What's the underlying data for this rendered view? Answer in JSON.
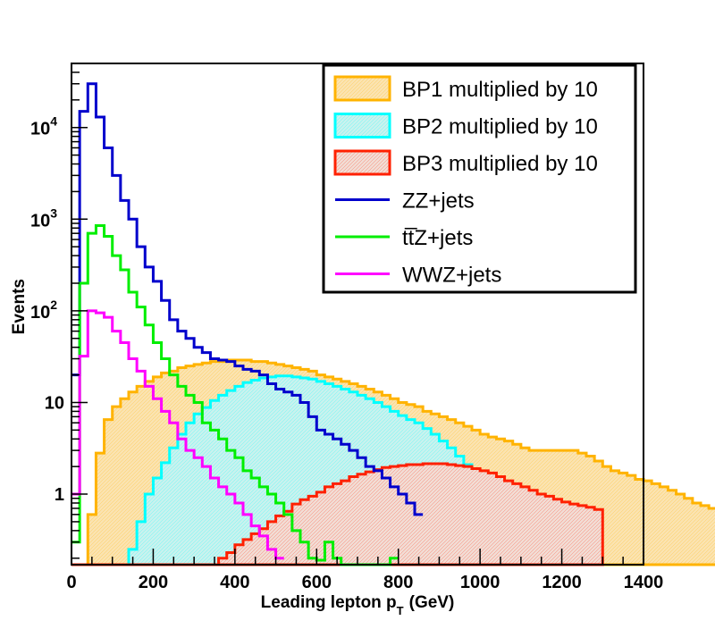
{
  "chart_data": {
    "type": "histogram",
    "title": "",
    "xlabel": "Leading lepton p",
    "xlabel_sub": "T",
    "xlabel_unit": "(GeV)",
    "ylabel": "Events",
    "xlim": [
      0,
      1400
    ],
    "ylim": [
      0.17,
      50000
    ],
    "yscale": "log",
    "bin_width": 20,
    "x_ticks": [
      "0",
      "200",
      "400",
      "600",
      "800",
      "1000",
      "1200",
      "1400"
    ],
    "y_ticks": [
      {
        "value": 1,
        "label": "1"
      },
      {
        "value": 10,
        "label": "10"
      },
      {
        "value": 100,
        "label": "10",
        "exp": "2"
      },
      {
        "value": 1000,
        "label": "10",
        "exp": "3"
      },
      {
        "value": 10000,
        "label": "10",
        "exp": "4"
      }
    ],
    "legend_position": "top-right",
    "series": [
      {
        "name": "BP1 multiplied by 10",
        "color": "#ffb300",
        "fill": "#fbe3b0",
        "style": "filled",
        "values": [
          0.17,
          0.17,
          0.6,
          2.8,
          6.5,
          9,
          11,
          13,
          15,
          17,
          19,
          21,
          22,
          24,
          25,
          26,
          27,
          28,
          28,
          29,
          29,
          29,
          28,
          28,
          27,
          26,
          25,
          24,
          23,
          22,
          20,
          19,
          18,
          17,
          16,
          15,
          14,
          13,
          12,
          11,
          10,
          9.5,
          9,
          8,
          7.5,
          7,
          6.5,
          6,
          5.5,
          5,
          4.5,
          4.2,
          4,
          3.8,
          3.5,
          3.2,
          3.0,
          3.0,
          3.0,
          3.0,
          3.0,
          3.0,
          2.8,
          2.6,
          2.3,
          2.0,
          1.8,
          1.7,
          1.6,
          1.45,
          1.4,
          1.3,
          1.2,
          1.1,
          1.0,
          0.9,
          0.8,
          0.75,
          0.7,
          0.6
        ]
      },
      {
        "name": "BP2 multiplied by 10",
        "color": "#00ffff",
        "fill": "#c8f2ee",
        "style": "filled",
        "values": [
          0.17,
          0.17,
          0.17,
          0.17,
          0.17,
          0.17,
          0.17,
          0.25,
          0.5,
          1.0,
          1.5,
          2.2,
          3.2,
          4.5,
          6.0,
          7.5,
          8.8,
          10.5,
          12,
          13.5,
          15,
          16.5,
          17.5,
          18.5,
          19,
          19.5,
          19.5,
          19,
          18.5,
          18,
          17,
          16,
          15,
          14,
          13,
          12,
          11,
          10,
          9,
          8,
          7.2,
          6.5,
          6,
          5.2,
          4.5,
          3.8,
          3.2,
          2.6,
          2.1,
          1.7,
          1.4,
          1.15
        ]
      },
      {
        "name": "BP3 multiplied by 10",
        "color": "#ff2000",
        "fill": "#f2dcd4",
        "style": "filled",
        "values": [
          0.17,
          0.17,
          0.17,
          0.17,
          0.17,
          0.17,
          0.17,
          0.17,
          0.17,
          0.17,
          0.17,
          0.17,
          0.17,
          0.17,
          0.17,
          0.17,
          0.17,
          0.17,
          0.2,
          0.23,
          0.28,
          0.32,
          0.37,
          0.42,
          0.5,
          0.58,
          0.65,
          0.78,
          0.87,
          0.95,
          1.05,
          1.2,
          1.3,
          1.4,
          1.55,
          1.65,
          1.75,
          1.85,
          1.95,
          2.0,
          2.05,
          2.1,
          2.1,
          2.15,
          2.15,
          2.15,
          2.1,
          2.05,
          2.0,
          1.9,
          1.8,
          1.7,
          1.55,
          1.4,
          1.3,
          1.2,
          1.1,
          1.0,
          0.95,
          0.88,
          0.82,
          0.78,
          0.75,
          0.72,
          0.68
        ]
      },
      {
        "name": "ZZ+jets",
        "color": "#0000cc",
        "style": "line",
        "values": [
          20,
          15000,
          30000,
          13000,
          6000,
          3000,
          1600,
          1000,
          500,
          300,
          210,
          130,
          80,
          60,
          50,
          40,
          35,
          30,
          29,
          28,
          25,
          23,
          22,
          20,
          16,
          14,
          13,
          12,
          10,
          7,
          5,
          4.5,
          4,
          3.5,
          3,
          2.5,
          2,
          1.8,
          1.5,
          1.2,
          1.0,
          0.8,
          0.6
        ]
      },
      {
        "name": "tt̅Z+jets",
        "color": "#00ee00",
        "style": "line",
        "values": [
          0.3,
          200,
          700,
          850,
          650,
          400,
          280,
          160,
          110,
          70,
          45,
          30,
          20,
          15,
          12,
          10,
          6,
          5,
          4,
          3,
          2.5,
          1.8,
          1.5,
          1.2,
          1.0,
          0.8,
          0.6,
          0.4,
          0.3,
          0.2,
          0.19,
          0.3,
          0.2,
          0.17,
          0.17,
          0.17,
          0.17,
          0.17,
          0.17,
          0.2
        ]
      },
      {
        "name": "WWZ+jets",
        "color": "#ff00ff",
        "style": "line",
        "values": [
          1,
          32,
          100,
          95,
          85,
          60,
          45,
          30,
          22,
          15,
          11,
          8,
          6,
          4,
          3,
          2.5,
          2,
          1.5,
          1.2,
          1.0,
          0.8,
          0.6,
          0.45,
          0.35,
          0.25,
          0.2
        ]
      }
    ]
  }
}
